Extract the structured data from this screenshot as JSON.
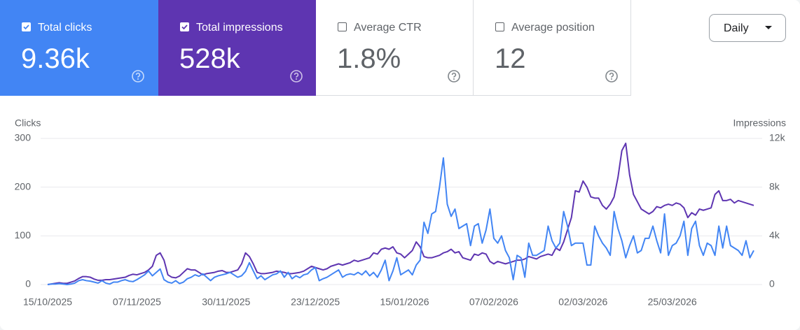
{
  "cards": [
    {
      "label": "Total clicks",
      "value": "9.36k",
      "checked": true,
      "color": "#4285f4"
    },
    {
      "label": "Total impressions",
      "value": "528k",
      "checked": true,
      "color": "#5e35b1"
    },
    {
      "label": "Average CTR",
      "value": "1.8%",
      "checked": false
    },
    {
      "label": "Average position",
      "value": "12",
      "checked": false
    }
  ],
  "dropdown": "Daily",
  "chart_data": {
    "type": "line",
    "grid": true,
    "categories": [
      "15/10/2025",
      null,
      null,
      null,
      null,
      null,
      null,
      null,
      null,
      null,
      null,
      null,
      null,
      null,
      null,
      null,
      null,
      null,
      null,
      null,
      null,
      null,
      null,
      "07/11/2025",
      null,
      null,
      null,
      null,
      null,
      null,
      null,
      null,
      null,
      null,
      null,
      null,
      null,
      null,
      null,
      null,
      null,
      null,
      null,
      null,
      null,
      null,
      "30/11/2025",
      null,
      null,
      null,
      null,
      null,
      null,
      null,
      null,
      null,
      null,
      null,
      null,
      null,
      null,
      null,
      null,
      null,
      null,
      null,
      null,
      null,
      null,
      "23/12/2025",
      null,
      null,
      null,
      null,
      null,
      null,
      null,
      null,
      null,
      null,
      null,
      null,
      null,
      null,
      null,
      null,
      null,
      null,
      null,
      null,
      null,
      null,
      "15/01/2026",
      null,
      null,
      null,
      null,
      null,
      null,
      null,
      null,
      null,
      null,
      null,
      null,
      null,
      null,
      null,
      null,
      null,
      null,
      null,
      null,
      null,
      null,
      "07/02/2026",
      null,
      null,
      null,
      null,
      null,
      null,
      null,
      null,
      null,
      null,
      null,
      null,
      null,
      null,
      null,
      null,
      null,
      null,
      null,
      null,
      null,
      null,
      "02/03/2026",
      null,
      null,
      null,
      null,
      null,
      null,
      null,
      null,
      null,
      null,
      null,
      null,
      null,
      null,
      null,
      null,
      null,
      null,
      null,
      null,
      null,
      null,
      "25/03/2026",
      null,
      null,
      null,
      null,
      null,
      null,
      null,
      null,
      null,
      null,
      null,
      null,
      null,
      null,
      null,
      null,
      null,
      null,
      null,
      null,
      null
    ],
    "series": [
      {
        "name": "Clicks",
        "color": "#4285f4",
        "values": [
          0,
          1,
          1,
          2,
          1,
          0,
          1,
          3,
          8,
          10,
          8,
          7,
          5,
          3,
          8,
          3,
          1,
          5,
          5,
          8,
          10,
          7,
          6,
          10,
          15,
          20,
          28,
          18,
          25,
          32,
          10,
          5,
          3,
          8,
          2,
          5,
          12,
          15,
          20,
          17,
          22,
          15,
          8,
          15,
          18,
          20,
          22,
          25,
          20,
          15,
          18,
          27,
          45,
          28,
          12,
          18,
          10,
          15,
          20,
          22,
          28,
          15,
          25,
          12,
          18,
          14,
          20,
          22,
          30,
          35,
          8,
          12,
          15,
          20,
          25,
          30,
          15,
          20,
          22,
          20,
          25,
          20,
          28,
          18,
          25,
          15,
          30,
          50,
          8,
          28,
          55,
          20,
          25,
          30,
          20,
          40,
          50,
          128,
          105,
          145,
          150,
          200,
          260,
          165,
          140,
          155,
          115,
          120,
          125,
          80,
          120,
          125,
          85,
          112,
          155,
          95,
          85,
          100,
          70,
          55,
          10,
          60,
          55,
          15,
          85,
          60,
          60,
          65,
          70,
          120,
          90,
          75,
          85,
          150,
          120,
          80,
          85,
          85,
          85,
          40,
          40,
          120,
          100,
          85,
          75,
          60,
          150,
          115,
          90,
          55,
          80,
          100,
          65,
          70,
          95,
          95,
          120,
          90,
          65,
          145,
          60,
          80,
          85,
          100,
          130,
          60,
          115,
          130,
          80,
          60,
          85,
          80,
          60,
          120,
          75,
          120,
          80,
          75,
          70,
          60,
          90,
          55,
          70
        ]
      },
      {
        "name": "Impressions",
        "color": "#5e35b1",
        "axis": "y2",
        "values": [
          0,
          50,
          100,
          150,
          100,
          100,
          200,
          300,
          500,
          650,
          650,
          600,
          450,
          350,
          350,
          400,
          400,
          450,
          500,
          550,
          600,
          750,
          850,
          800,
          900,
          1000,
          1200,
          1500,
          2400,
          2600,
          2000,
          800,
          600,
          550,
          700,
          1000,
          1300,
          1200,
          1200,
          1000,
          800,
          900,
          950,
          1000,
          1100,
          1150,
          1000,
          1000,
          1100,
          1200,
          1700,
          2600,
          2300,
          1700,
          1000,
          900,
          900,
          950,
          1000,
          1100,
          1050,
          1000,
          900,
          900,
          950,
          1000,
          1100,
          1300,
          1500,
          1400,
          1300,
          1200,
          1300,
          1500,
          1600,
          1700,
          1600,
          1700,
          1800,
          2000,
          1900,
          2000,
          2100,
          2200,
          2600,
          2500,
          2900,
          3000,
          2900,
          3100,
          2600,
          2500,
          2200,
          2500,
          2800,
          3500,
          3100,
          2300,
          2200,
          2200,
          2300,
          2400,
          2600,
          2700,
          2900,
          2600,
          2700,
          2200,
          2100,
          2000,
          2500,
          2400,
          2600,
          2500,
          1900,
          1700,
          1900,
          1800,
          1700,
          1800,
          1900,
          2000,
          2000,
          2100,
          2300,
          2200,
          2100,
          2300,
          2400,
          2500,
          2400,
          3000,
          2800,
          3500,
          4500,
          5500,
          7700,
          7600,
          8500,
          8000,
          7200,
          7100,
          7100,
          6500,
          6200,
          6600,
          7200,
          8800,
          11000,
          11600,
          9000,
          7400,
          6800,
          6200,
          6000,
          5800,
          6000,
          6400,
          6300,
          6500,
          6600,
          6500,
          6700,
          6600,
          6300,
          5500,
          5900,
          5700,
          6200,
          6100,
          6200,
          6300,
          7400,
          7700,
          6900,
          6900,
          7000,
          6700,
          6900,
          6800,
          6700,
          6600,
          6500
        ]
      }
    ],
    "ylim": [
      0,
      300
    ],
    "yticks": [
      0,
      100,
      200,
      300
    ],
    "y2lim": [
      0,
      12000
    ],
    "y2ticks": [
      0,
      {
        "value": 4000,
        "label": "4k"
      },
      {
        "value": 8000,
        "label": "8k"
      },
      {
        "value": 12000,
        "label": "12k"
      }
    ]
  }
}
